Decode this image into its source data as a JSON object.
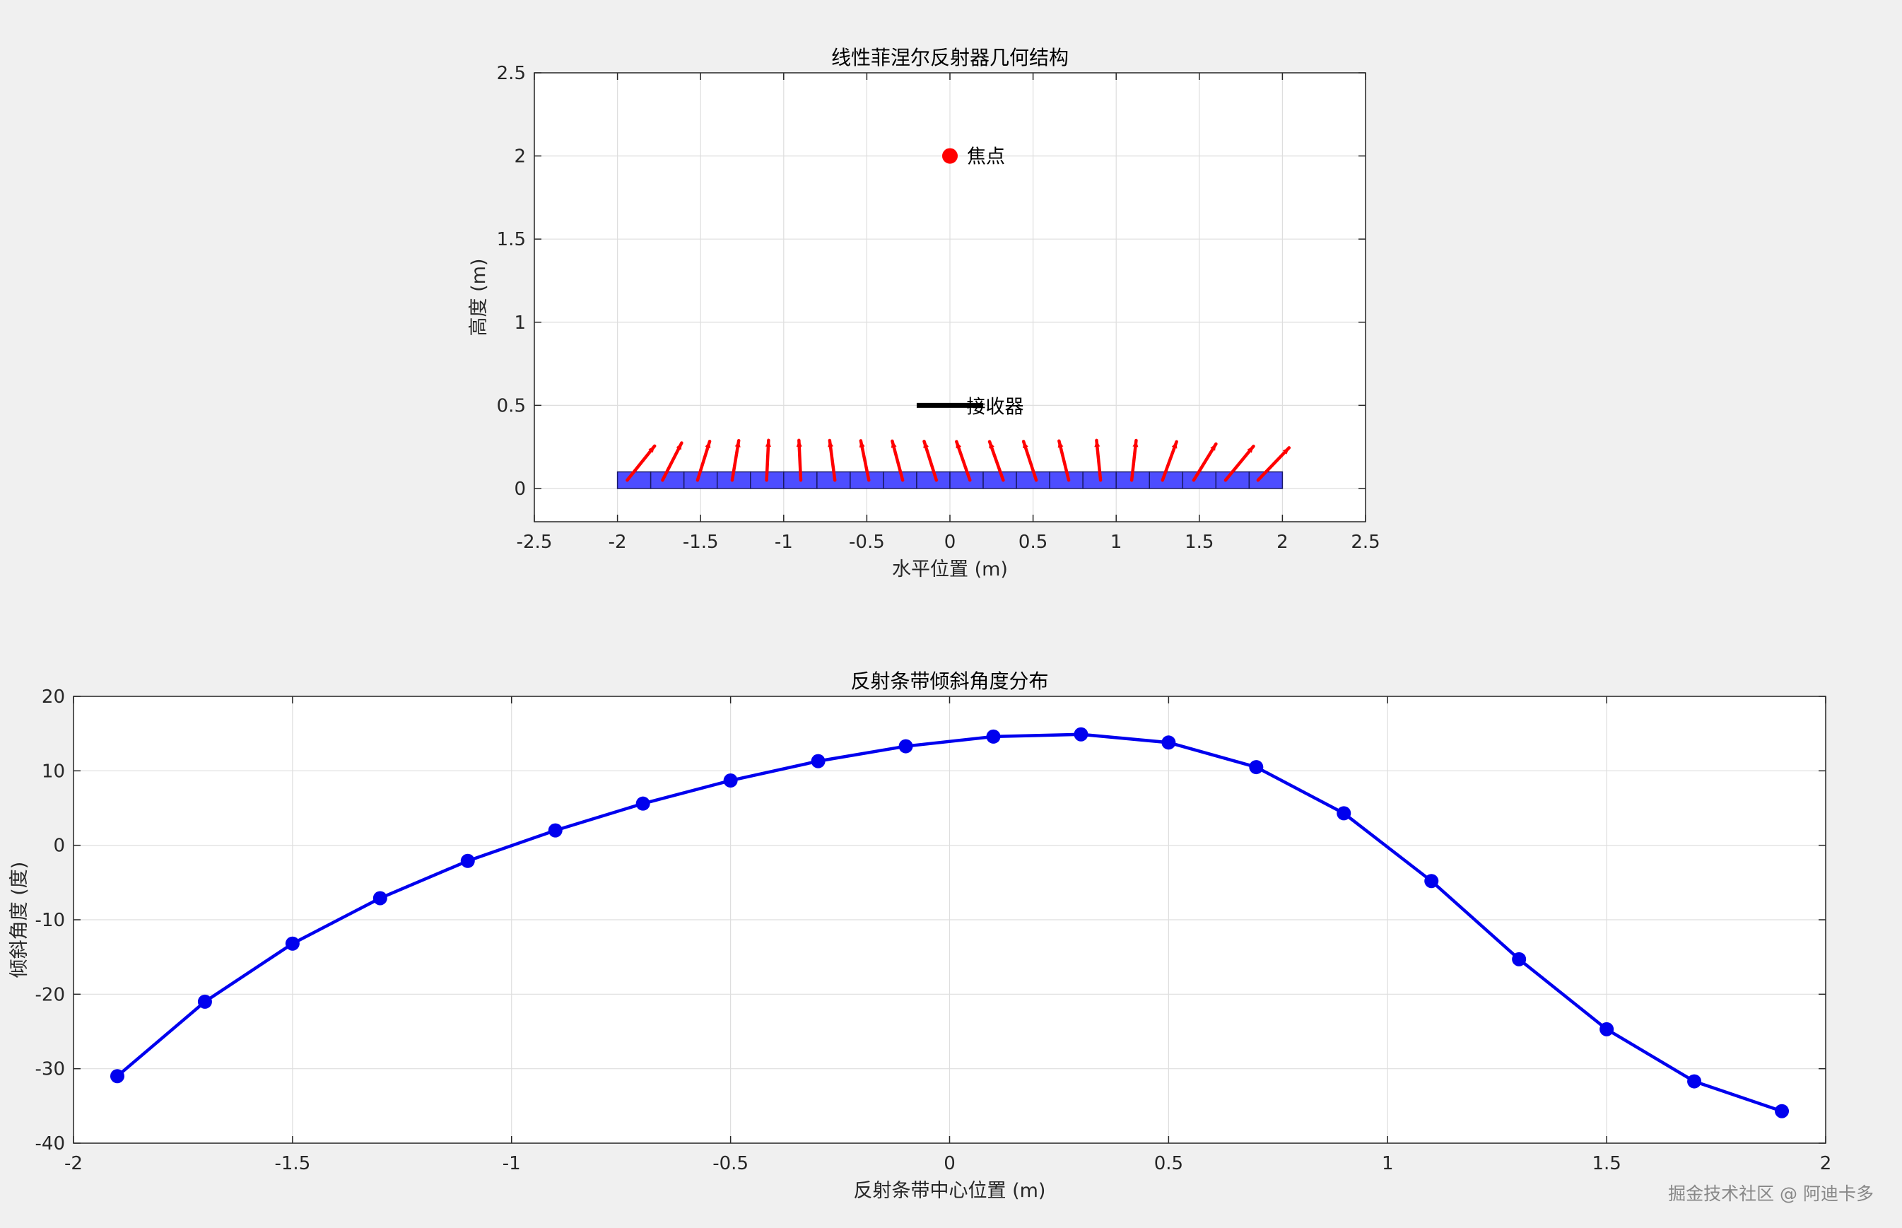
{
  "chart_data": [
    {
      "type": "scatter",
      "title": "线性菲涅尔反射器几何结构",
      "xlabel": "水平位置 (m)",
      "ylabel": "高度 (m)",
      "xlim": [
        -2.5,
        2.5
      ],
      "ylim": [
        -0.2,
        2.5
      ],
      "xticks": [
        -2.5,
        -2,
        -1.5,
        -1,
        -0.5,
        0,
        0.5,
        1,
        1.5,
        2,
        2.5
      ],
      "xtick_labels": [
        "-2.5",
        "-2",
        "-1.5",
        "-1",
        "-0.5",
        "0",
        "0.5",
        "1",
        "1.5",
        "2",
        "2.5"
      ],
      "yticks": [
        0,
        0.5,
        1,
        1.5,
        2,
        2.5
      ],
      "ytick_labels": [
        "0",
        "0.5",
        "1",
        "1.5",
        "2",
        "2.5"
      ],
      "grid": true,
      "focus": {
        "label": "焦点",
        "x": 0,
        "y": 2.0,
        "color": "#ff0000"
      },
      "receiver": {
        "label": "接收器",
        "x": [
          -0.2,
          0.2
        ],
        "y": 0.5,
        "color": "#000000"
      },
      "mirror_strip": {
        "x": [
          -2,
          2
        ],
        "y": [
          0,
          0.1
        ],
        "segments": 20,
        "color": "#4d4dff",
        "edge_color": "#1a1a66"
      },
      "normals": {
        "color": "#ff0000",
        "x": [
          -1.9,
          -1.7,
          -1.5,
          -1.3,
          -1.1,
          -0.9,
          -0.7,
          -0.5,
          -0.3,
          -0.1,
          0.1,
          0.3,
          0.5,
          0.7,
          0.9,
          1.1,
          1.3,
          1.5,
          1.7,
          1.9
        ],
        "angles_deg": [
          -31,
          -21,
          -13.2,
          -7.1,
          -2.1,
          2,
          5.6,
          8.7,
          11.3,
          13.3,
          14.6,
          14.9,
          13.8,
          10.5,
          4.3,
          -4.8,
          -15.3,
          -24.7,
          -31.7,
          -35.7
        ]
      }
    },
    {
      "type": "line",
      "title": "反射条带倾斜角度分布",
      "xlabel": "反射条带中心位置 (m)",
      "ylabel": "倾斜角度 (度)",
      "xlim": [
        -2,
        2
      ],
      "ylim": [
        -40,
        20
      ],
      "xticks": [
        -2,
        -1.5,
        -1,
        -0.5,
        0,
        0.5,
        1,
        1.5,
        2
      ],
      "xtick_labels": [
        "-2",
        "-1.5",
        "-1",
        "-0.5",
        "0",
        "0.5",
        "1",
        "1.5",
        "2"
      ],
      "yticks": [
        -40,
        -30,
        -20,
        -10,
        0,
        10,
        20
      ],
      "ytick_labels": [
        "-40",
        "-30",
        "-20",
        "-10",
        "0",
        "10",
        "20"
      ],
      "grid": true,
      "color": "#0000ee",
      "x": [
        -1.9,
        -1.7,
        -1.5,
        -1.3,
        -1.1,
        -0.9,
        -0.7,
        -0.5,
        -0.3,
        -0.1,
        0.1,
        0.3,
        0.5,
        0.7,
        0.9,
        1.1,
        1.3,
        1.5,
        1.7,
        1.9
      ],
      "y": [
        -31,
        -21,
        -13.2,
        -7.1,
        -2.1,
        2,
        5.6,
        8.7,
        11.3,
        13.3,
        14.6,
        14.9,
        13.8,
        10.5,
        4.3,
        -4.8,
        -15.3,
        -24.7,
        -31.7,
        -35.7
      ]
    }
  ],
  "watermark": "掘金技术社区 @ 阿迪卡多"
}
